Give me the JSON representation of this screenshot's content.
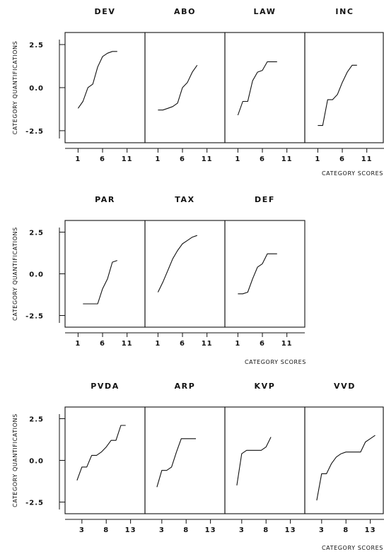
{
  "chart_data": [
    {
      "type": "line",
      "ylabel": "CATEGORY  QUANTIFICATIONS",
      "xlabel": "CATEGORY  SCORES",
      "ylim": [
        -3.2,
        3.2
      ],
      "xlim": [
        -0.5,
        13.5
      ],
      "yticks": [
        "2.5",
        "0.0",
        "-2.5"
      ],
      "ytick_values": [
        2.5,
        0.0,
        -2.5
      ],
      "xticks": [
        "1",
        "6",
        "11"
      ],
      "xtick_values": [
        1,
        6,
        11
      ],
      "panels": [
        {
          "name": "DEV",
          "x": [
            1,
            2,
            3,
            4,
            5,
            6,
            7,
            8,
            9
          ],
          "y": [
            -1.2,
            -0.8,
            0.0,
            0.2,
            1.2,
            1.8,
            2.0,
            2.1,
            2.1
          ]
        },
        {
          "name": "ABO",
          "x": [
            1,
            2,
            3,
            4,
            5,
            6,
            7,
            8,
            9
          ],
          "y": [
            -1.3,
            -1.3,
            -1.2,
            -1.1,
            -0.9,
            0.0,
            0.3,
            0.9,
            1.3
          ]
        },
        {
          "name": "LAW",
          "x": [
            1,
            2,
            3,
            4,
            5,
            6,
            7,
            8,
            9
          ],
          "y": [
            -1.6,
            -0.8,
            -0.8,
            0.4,
            0.9,
            1.0,
            1.5,
            1.5,
            1.5
          ]
        },
        {
          "name": "INC",
          "x": [
            1,
            2,
            3,
            4,
            5,
            6,
            7,
            8,
            9
          ],
          "y": [
            -2.2,
            -2.2,
            -0.7,
            -0.7,
            -0.4,
            0.3,
            0.9,
            1.3,
            1.3
          ]
        }
      ]
    },
    {
      "type": "line",
      "ylabel": "CATEGORY  QUANTIFICATIONS",
      "xlabel": "CATEGORY  SCORES",
      "ylim": [
        -3.2,
        3.2
      ],
      "xlim": [
        -0.5,
        13.5
      ],
      "yticks": [
        "2.5",
        "0.0",
        "-2.5"
      ],
      "ytick_values": [
        2.5,
        0.0,
        -2.5
      ],
      "xticks": [
        "1",
        "6",
        "11"
      ],
      "xtick_values": [
        1,
        6,
        11
      ],
      "panels": [
        {
          "name": "PAR",
          "x": [
            2,
            3,
            4,
            5,
            6,
            7,
            8,
            9
          ],
          "y": [
            -1.8,
            -1.8,
            -1.8,
            -1.8,
            -0.9,
            -0.3,
            0.7,
            0.8
          ]
        },
        {
          "name": "TAX",
          "x": [
            1,
            2,
            3,
            4,
            5,
            6,
            7,
            8,
            9
          ],
          "y": [
            -1.1,
            -0.5,
            0.2,
            0.9,
            1.4,
            1.8,
            2.0,
            2.2,
            2.3
          ]
        },
        {
          "name": "DEF",
          "x": [
            1,
            2,
            3,
            4,
            5,
            6,
            7,
            8,
            9
          ],
          "y": [
            -1.2,
            -1.2,
            -1.1,
            -0.3,
            0.4,
            0.6,
            1.2,
            1.2,
            1.2
          ]
        }
      ]
    },
    {
      "type": "line",
      "ylabel": "CATEGORY  QUANTIFICATIONS",
      "xlabel": "CATEGORY  SCORES",
      "ylim": [
        -3.2,
        3.2
      ],
      "xlim": [
        0.7,
        14.8
      ],
      "yticks": [
        "2.5",
        "0.0",
        "-2.5"
      ],
      "ytick_values": [
        2.5,
        0.0,
        -2.5
      ],
      "xticks": [
        "3",
        "8",
        "13"
      ],
      "xtick_values": [
        3,
        8,
        13
      ],
      "panels": [
        {
          "name": "PVDA",
          "x": [
            2,
            3,
            4,
            5,
            6,
            7,
            8,
            9,
            10,
            11,
            12
          ],
          "y": [
            -1.2,
            -0.4,
            -0.4,
            0.3,
            0.3,
            0.5,
            0.8,
            1.2,
            1.2,
            2.1,
            2.1
          ]
        },
        {
          "name": "ARP",
          "x": [
            2,
            3,
            4,
            5,
            6,
            7,
            8,
            9,
            10
          ],
          "y": [
            -1.6,
            -0.6,
            -0.6,
            -0.4,
            0.5,
            1.3,
            1.3,
            1.3,
            1.3
          ]
        },
        {
          "name": "KVP",
          "x": [
            2,
            3,
            4,
            5,
            6,
            7,
            8,
            9
          ],
          "y": [
            -1.5,
            0.4,
            0.6,
            0.6,
            0.6,
            0.6,
            0.8,
            1.4
          ]
        },
        {
          "name": "VVD",
          "x": [
            2,
            3,
            4,
            5,
            6,
            7,
            8,
            9,
            10,
            11,
            12,
            13,
            14
          ],
          "y": [
            -2.4,
            -0.8,
            -0.8,
            -0.2,
            0.2,
            0.4,
            0.5,
            0.5,
            0.5,
            0.5,
            1.1,
            1.3,
            1.5
          ]
        }
      ]
    }
  ]
}
